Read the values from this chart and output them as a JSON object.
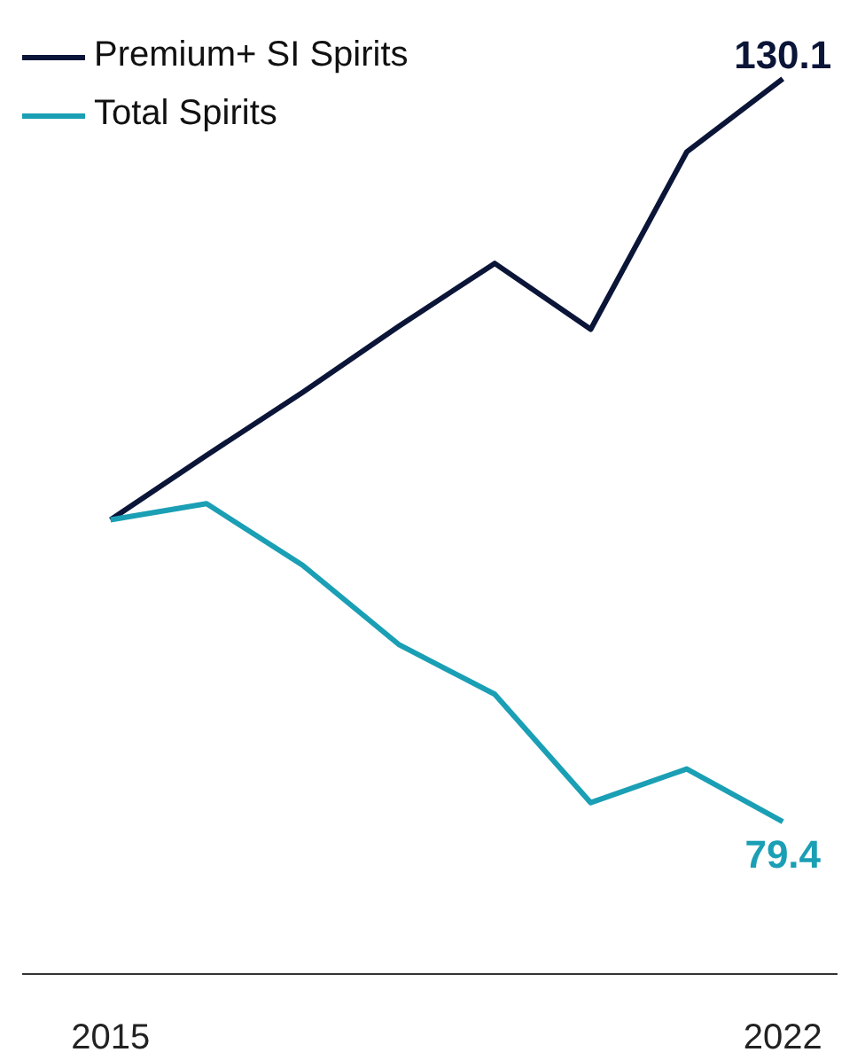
{
  "chart_data": {
    "type": "line",
    "x": [
      2015,
      2016,
      2017,
      2018,
      2019,
      2020,
      2021,
      2022
    ],
    "series": [
      {
        "name": "Premium+ SI Spirits",
        "color": "#0b1538",
        "values": [
          100,
          104.4,
          108.7,
          113.2,
          117.5,
          113.0,
          125.1,
          130.1
        ],
        "value_labels": [
          null,
          null,
          null,
          null,
          null,
          null,
          null,
          "130.1"
        ]
      },
      {
        "name": "Total Spirits",
        "color": "#1a9fb5",
        "values": [
          100,
          101.1,
          96.9,
          91.5,
          88.1,
          80.7,
          83.0,
          79.4
        ],
        "value_labels": [
          null,
          null,
          null,
          null,
          null,
          null,
          null,
          "79.4"
        ]
      }
    ],
    "xlim": [
      2014.08,
      2022.57
    ],
    "xticks": [
      2015,
      2022
    ],
    "tick_labels": "x",
    "grid": false,
    "legend": "top left",
    "marker": "none",
    "line_style": "solid"
  }
}
